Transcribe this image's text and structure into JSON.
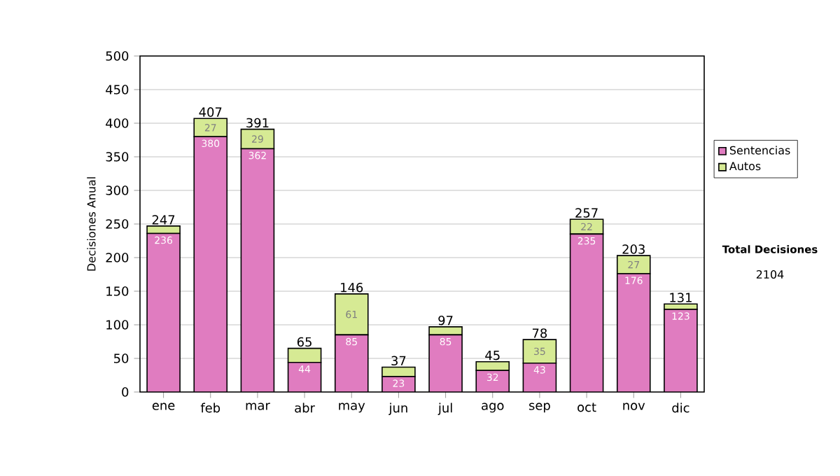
{
  "chart_data": {
    "type": "bar",
    "stacked": true,
    "ylabel": "Decisiones Anual",
    "categories": [
      "ene",
      "feb",
      "mar",
      "abr",
      "may",
      "jun",
      "jul",
      "ago",
      "sep",
      "oct",
      "nov",
      "dic"
    ],
    "series": [
      {
        "name": "Sentencias",
        "color": "#e07cc0",
        "values": [
          236,
          380,
          362,
          44,
          85,
          23,
          85,
          32,
          43,
          235,
          176,
          123
        ],
        "value_labels": [
          "236",
          "380",
          "362",
          "44",
          "85",
          "23",
          "85",
          "32",
          "43",
          "235",
          "176",
          "123"
        ]
      },
      {
        "name": "Autos",
        "color": "#d6ea94",
        "values": [
          11,
          27,
          29,
          21,
          61,
          14,
          12,
          13,
          35,
          22,
          27,
          8
        ],
        "value_labels": [
          null,
          "27",
          "29",
          null,
          "61",
          null,
          null,
          null,
          "35",
          "22",
          "27",
          null
        ]
      }
    ],
    "totals": [
      "247",
      "407",
      "391",
      "65",
      "146",
      "37",
      "97",
      "45",
      "78",
      "257",
      "203",
      "131"
    ],
    "ylim": [
      0,
      500
    ],
    "yticks": [
      0,
      50,
      100,
      150,
      200,
      250,
      300,
      350,
      400,
      450,
      500
    ],
    "grid": "y",
    "legend": "right",
    "annotations": [
      "Total Decisiones",
      "2104"
    ]
  }
}
